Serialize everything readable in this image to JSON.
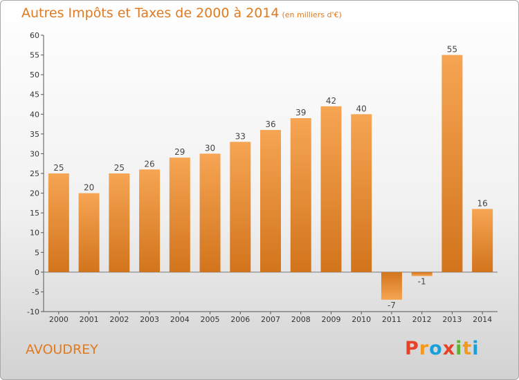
{
  "header": {
    "title": "Autres Impôts et Taxes de 2000 à 2014",
    "subtitle": "(en milliers d'€)"
  },
  "footer": {
    "town": "AVOUDREY",
    "brand": "Proxiti",
    "brand_colors": [
      "#e8412a",
      "#f39a1e",
      "#1aa0d8",
      "#e8412a",
      "#5cb32e",
      "#f39a1e",
      "#1aa0d8"
    ]
  },
  "chart_data": {
    "type": "bar",
    "title": "Autres Impôts et Taxes de 2000 à 2014",
    "subtitle": "(en milliers d'€)",
    "categories": [
      "2000",
      "2001",
      "2002",
      "2003",
      "2004",
      "2005",
      "2006",
      "2007",
      "2008",
      "2009",
      "2010",
      "2011",
      "2012",
      "2013",
      "2014"
    ],
    "values": [
      25,
      20,
      25,
      26,
      29,
      30,
      33,
      36,
      39,
      42,
      40,
      -7,
      -1,
      55,
      16
    ],
    "value_labels": [
      "25",
      "20",
      "25",
      "26",
      "29",
      "30",
      "33",
      "36",
      "39",
      "42",
      "40",
      "-7",
      "-1",
      "55",
      "16"
    ],
    "ylim": [
      -10,
      60
    ],
    "yticks": [
      -10,
      -5,
      0,
      5,
      10,
      15,
      20,
      25,
      30,
      35,
      40,
      45,
      50,
      55,
      60
    ],
    "grid": false,
    "bar_color": "#f0993e",
    "bar_color_dark": "#c96d18"
  }
}
